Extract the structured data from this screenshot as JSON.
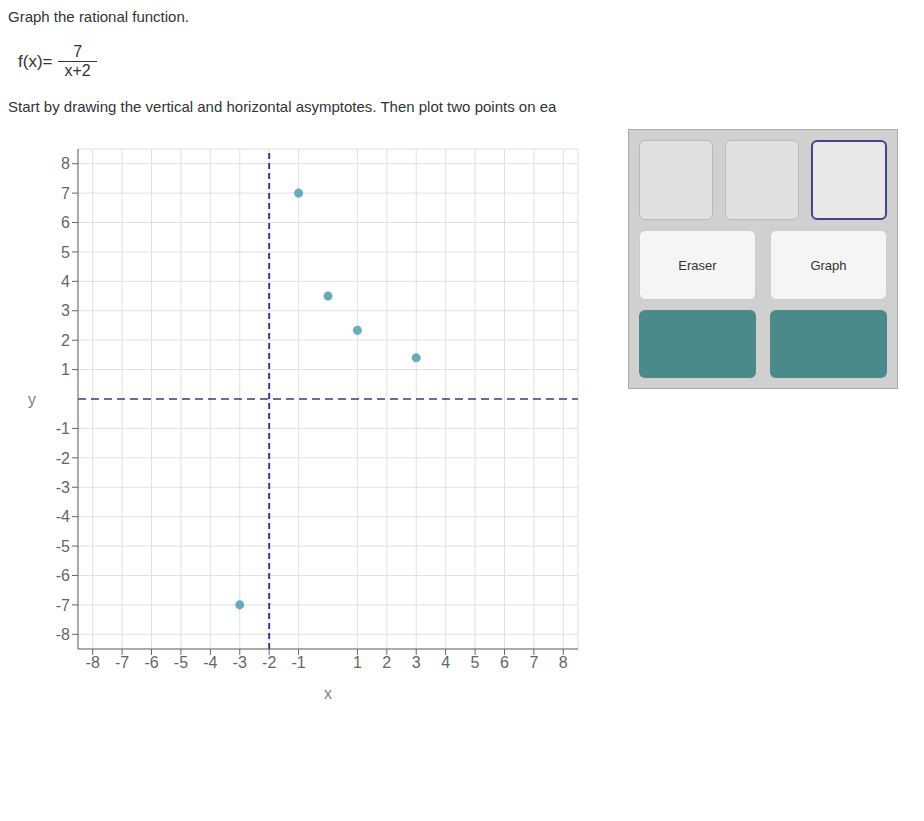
{
  "chart_data": {
    "type": "scatter",
    "title": "Graph the rational function.",
    "subtitle": "Start by drawing the vertical and horizontal asymptotes. Then plot two points on ea",
    "formula": {
      "prefix": "f(x)=",
      "numerator": "7",
      "denominator": "x+2"
    },
    "buttons": [
      "Eraser",
      "Graph"
    ],
    "xlabel": "x",
    "ylabel": "y",
    "xlim": [
      -8.5,
      8.5
    ],
    "ylim": [
      -8.5,
      8.5
    ],
    "xticks": [
      -8,
      -7,
      -6,
      -5,
      -4,
      -3,
      -2,
      -1,
      1,
      2,
      3,
      4,
      5,
      6,
      7,
      8
    ],
    "yticks": [
      -8,
      -7,
      -6,
      -5,
      -4,
      -3,
      -2,
      -1,
      1,
      2,
      3,
      4,
      5,
      6,
      7,
      8
    ],
    "grid": true,
    "series": [
      {
        "color": "#6aaabf",
        "x": [
          -1,
          0,
          1,
          3,
          -3
        ],
        "values": [
          7,
          3.5,
          2.3333,
          1.4,
          -7
        ]
      }
    ],
    "asymptotes": [
      {
        "axis": "x",
        "value": -2,
        "color": "#3a3a8c"
      },
      {
        "axis": "y",
        "value": 0,
        "color": "#3a3a8c"
      }
    ]
  }
}
